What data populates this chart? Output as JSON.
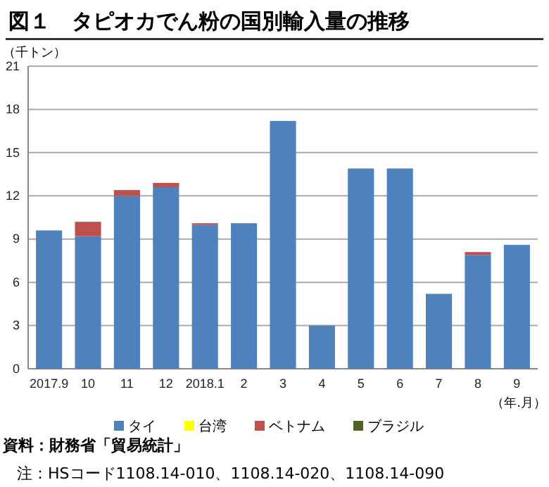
{
  "chart_data": {
    "type": "bar",
    "stacked": true,
    "title": "図１　タピオカでん粉の国別輸入量の推移",
    "ylabel": "（千トン）",
    "xlabel": "（年.月）",
    "categories": [
      "2017.9",
      "10",
      "11",
      "12",
      "2018.1",
      "2",
      "3",
      "4",
      "5",
      "6",
      "7",
      "8",
      "9"
    ],
    "series": [
      {
        "name": "タイ",
        "color": "#4f81bd",
        "values": [
          9.6,
          9.2,
          12.0,
          12.6,
          10.0,
          10.1,
          17.2,
          3.0,
          13.9,
          13.9,
          5.2,
          7.9,
          8.6
        ]
      },
      {
        "name": "台湾",
        "color": "#ffff00",
        "values": [
          0,
          0,
          0,
          0,
          0,
          0,
          0,
          0,
          0,
          0,
          0,
          0,
          0
        ]
      },
      {
        "name": "ベトナム",
        "color": "#c0504d",
        "values": [
          0,
          1.0,
          0.4,
          0.3,
          0.1,
          0,
          0,
          0,
          0,
          0,
          0,
          0.2,
          0
        ]
      },
      {
        "name": "ブラジル",
        "color": "#4f6228",
        "values": [
          0,
          0,
          0,
          0,
          0,
          0,
          0,
          0,
          0,
          0,
          0,
          0,
          0
        ]
      }
    ],
    "ylim": [
      0,
      21
    ],
    "yticks": [
      0,
      3,
      6,
      9,
      12,
      15,
      18,
      21
    ],
    "grid": "y",
    "legend": "bottom",
    "annotations": [
      "資料：財務省「貿易統計」",
      "注：HSコード1108.14-010、1108.14-020、1108.14-090"
    ]
  }
}
